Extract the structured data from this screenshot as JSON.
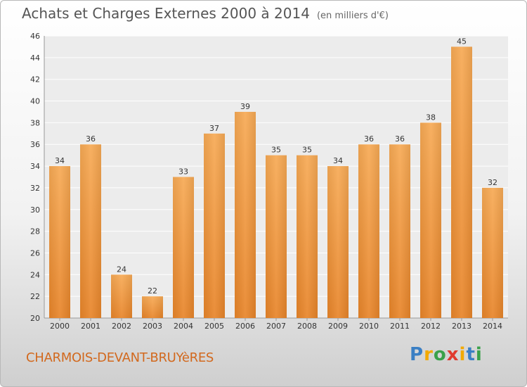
{
  "header": {
    "title": "Achats et Charges Externes 2000 à 2014",
    "unit": "(en milliers d'€)"
  },
  "footer": {
    "location": "CHARMOIS-DEVANT-BRUYèRES",
    "brand": "Proxiti",
    "brand_letters": [
      {
        "ch": "P",
        "color": "#3a7fc4"
      },
      {
        "ch": "r",
        "color": "#f2a900"
      },
      {
        "ch": "o",
        "color": "#3aa14a"
      },
      {
        "ch": "x",
        "color": "#e03a2f"
      },
      {
        "ch": "i",
        "color": "#f2a900"
      },
      {
        "ch": "t",
        "color": "#3a7fc4"
      },
      {
        "ch": "i",
        "color": "#3aa14a"
      }
    ]
  },
  "chart_data": {
    "type": "bar",
    "title": "Achats et Charges Externes 2000 à 2014",
    "categories": [
      "2000",
      "2001",
      "2002",
      "2003",
      "2004",
      "2005",
      "2006",
      "2007",
      "2008",
      "2009",
      "2010",
      "2011",
      "2012",
      "2013",
      "2014"
    ],
    "values": [
      34,
      36,
      24,
      22,
      33,
      37,
      39,
      35,
      35,
      34,
      36,
      36,
      38,
      45,
      32
    ],
    "ylim": [
      20,
      46
    ],
    "yticks": [
      20,
      22,
      24,
      26,
      28,
      30,
      32,
      34,
      36,
      38,
      40,
      42,
      44,
      46
    ],
    "grid": true,
    "bar_color": "#e8852a",
    "bar_color_light": "#f7aa55"
  }
}
